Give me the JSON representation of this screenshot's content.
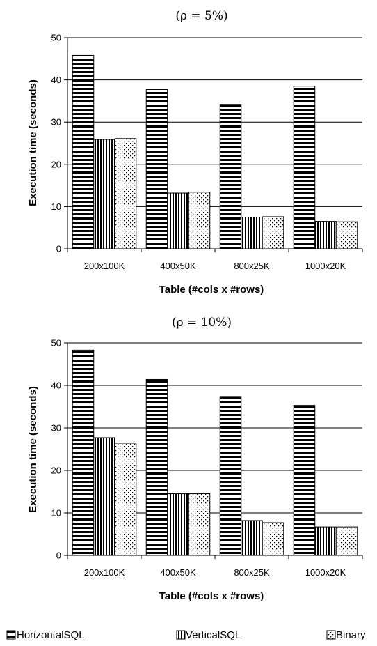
{
  "chart_data": [
    {
      "type": "bar",
      "title": "(ρ  = 5%)",
      "xlabel": "Table (#cols x #rows)",
      "ylabel": "Execution time (seconds)",
      "ylim": [
        0,
        50
      ],
      "yticks": [
        0,
        10,
        20,
        30,
        40,
        50
      ],
      "grid": true,
      "categories": [
        "200x100K",
        "400x50K",
        "800x25K",
        "1000x20K"
      ],
      "series": [
        {
          "name": "HorizontalSQL",
          "values": [
            45.8,
            37.7,
            34.2,
            38.5
          ]
        },
        {
          "name": "VerticalSQL",
          "values": [
            25.9,
            13.2,
            7.5,
            6.5
          ]
        },
        {
          "name": "Binary",
          "values": [
            26.1,
            13.4,
            7.6,
            6.4
          ]
        }
      ]
    },
    {
      "type": "bar",
      "title": "(ρ  = 10%)",
      "xlabel": "Table (#cols x #rows)",
      "ylabel": "Execution time (seconds)",
      "ylim": [
        0,
        50
      ],
      "yticks": [
        0,
        10,
        20,
        30,
        40,
        50
      ],
      "grid": true,
      "categories": [
        "200x100K",
        "400x50K",
        "800x25K",
        "1000x20K"
      ],
      "series": [
        {
          "name": "HorizontalSQL",
          "values": [
            48.3,
            41.4,
            37.4,
            35.3
          ]
        },
        {
          "name": "VerticalSQL",
          "values": [
            27.7,
            14.5,
            8.2,
            6.7
          ]
        },
        {
          "name": "Binary",
          "values": [
            26.4,
            14.5,
            7.7,
            6.7
          ]
        }
      ]
    }
  ],
  "legend": {
    "placement": "bottom",
    "items": [
      "HorizontalSQL",
      "VerticalSQL",
      "Binary"
    ],
    "patterns": [
      "horizontal-stripes",
      "vertical-stripes",
      "dots"
    ]
  }
}
